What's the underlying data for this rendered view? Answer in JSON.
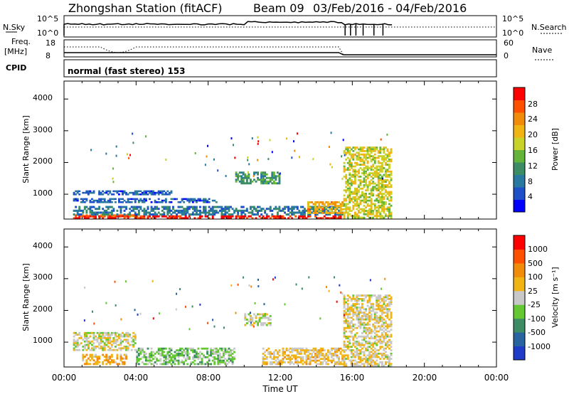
{
  "header": {
    "station": "Zhongshan Station (fitACF)",
    "beam": "Beam 09",
    "dates": "03/Feb/2016 - 04/Feb/2016"
  },
  "status_panels": {
    "nsky_label": "N.Sky",
    "nsky_ticks": [
      "10^5",
      "10^0"
    ],
    "nsearch_label": "N.Search",
    "nsearch_ticks": [
      "10^5",
      "10^0"
    ],
    "freq_label_1": "Freq.",
    "freq_label_2": "[MHz]",
    "freq_ticks": [
      "18",
      "8"
    ],
    "nave_label": "Nave",
    "nave_ticks": [
      "60",
      "0"
    ],
    "cpid_label": "CPID",
    "cpid_text": "normal (fast stereo) 153"
  },
  "x_axis": {
    "label": "Time UT",
    "ticks": [
      "00:00",
      "04:00",
      "08:00",
      "12:00",
      "16:00",
      "20:00",
      "00:00"
    ]
  },
  "power_panel": {
    "ylabel": "Slant Range [km]",
    "yticks": [
      "4000",
      "3000",
      "2000",
      "1000"
    ],
    "colorbar_label": "Power [dB]",
    "colorbar_ticks": [
      "28",
      "24",
      "20",
      "16",
      "12",
      "8",
      "4"
    ],
    "colors": [
      "#0000ff",
      "#1e50c8",
      "#2878a0",
      "#3c8c64",
      "#64b43c",
      "#c8d228",
      "#f0b414",
      "#f08c0a",
      "#ff5000",
      "#ff0000"
    ]
  },
  "velocity_panel": {
    "ylabel": "Slant Range [km]",
    "yticks": [
      "4000",
      "3000",
      "2000",
      "1000"
    ],
    "colorbar_label": "Velocity [m s⁻¹]",
    "colorbar_ticks": [
      "1000",
      "500",
      "100",
      "25",
      "-25",
      "-100",
      "-500",
      "-1000"
    ],
    "colors": [
      "#1e3cc8",
      "#2864a0",
      "#3c8c64",
      "#64c832",
      "#c8c8c8",
      "#f0b414",
      "#f08c0a",
      "#ff5000",
      "#ff0000"
    ]
  },
  "chart_data": [
    {
      "type": "heatmap",
      "title": "Power",
      "xlabel": "Time UT",
      "ylabel": "Slant Range [km]",
      "xlim": [
        0,
        24
      ],
      "ylim": [
        180,
        4600
      ],
      "colorbar": {
        "label": "Power [dB]",
        "range": [
          0,
          32
        ]
      },
      "bands": [
        {
          "t": [
            0.5,
            15.5
          ],
          "r": [
            180,
            300
          ],
          "value": 30
        },
        {
          "t": [
            0.5,
            4.0
          ],
          "r": [
            250,
            330
          ],
          "value": 26
        },
        {
          "t": [
            0.5,
            15.5
          ],
          "r": [
            300,
            600
          ],
          "value": 8
        },
        {
          "t": [
            0.5,
            8.5
          ],
          "r": [
            700,
            850
          ],
          "value": 6
        },
        {
          "t": [
            0.5,
            6.0
          ],
          "r": [
            950,
            1100
          ],
          "value": 6
        },
        {
          "t": [
            9.5,
            12.0
          ],
          "r": [
            1300,
            1700
          ],
          "value": 12
        },
        {
          "t": [
            13.5,
            15.5
          ],
          "r": [
            350,
            750
          ],
          "value": 22
        },
        {
          "t": [
            15.5,
            18.2
          ],
          "r": [
            200,
            2500
          ],
          "value": 18
        }
      ]
    },
    {
      "type": "heatmap",
      "title": "Velocity",
      "xlabel": "Time UT",
      "ylabel": "Slant Range [km]",
      "xlim": [
        0,
        24
      ],
      "ylim": [
        180,
        4600
      ],
      "colorbar": {
        "label": "Velocity [m s⁻¹]",
        "range": [
          -1000,
          1000
        ]
      },
      "bands": [
        {
          "t": [
            0.5,
            4.0
          ],
          "r": [
            700,
            1300
          ],
          "value": 0
        },
        {
          "t": [
            1.0,
            3.5
          ],
          "r": [
            250,
            600
          ],
          "value": 300
        },
        {
          "t": [
            4.0,
            9.5
          ],
          "r": [
            250,
            800
          ],
          "value": -200
        },
        {
          "t": [
            10.0,
            11.5
          ],
          "r": [
            1500,
            1900
          ],
          "value": 0
        },
        {
          "t": [
            11.0,
            15.5
          ],
          "r": [
            250,
            800
          ],
          "value": 150
        },
        {
          "t": [
            15.5,
            18.2
          ],
          "r": [
            200,
            2500
          ],
          "value": 80
        }
      ]
    }
  ]
}
